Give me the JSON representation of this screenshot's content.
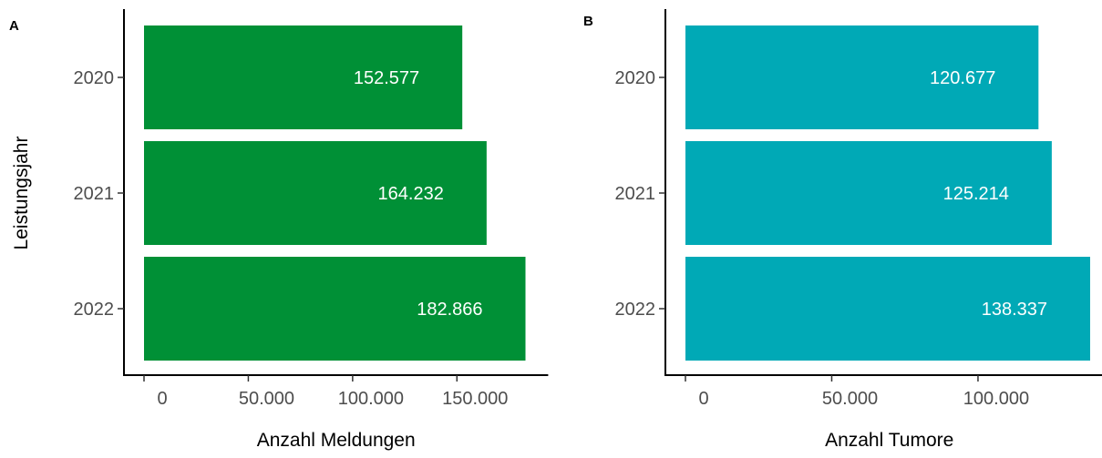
{
  "chart_data": [
    {
      "type": "bar",
      "orientation": "horizontal",
      "panel_tag": "A",
      "categories": [
        "2020",
        "2021",
        "2022"
      ],
      "values": [
        152577,
        164232,
        182866
      ],
      "value_labels": [
        "152.577",
        "164.232",
        "182.866"
      ],
      "xlabel": "Anzahl Meldungen",
      "ylabel": "Leistungsjahr",
      "xticks": [
        0,
        50000,
        100000,
        150000
      ],
      "xtick_labels": [
        "0",
        "50.000",
        "100.000",
        "150.000"
      ],
      "xlim": [
        0,
        192000
      ],
      "bar_color": "#009036",
      "grid": false
    },
    {
      "type": "bar",
      "orientation": "horizontal",
      "panel_tag": "B",
      "categories": [
        "2020",
        "2021",
        "2022"
      ],
      "values": [
        120677,
        125214,
        138337
      ],
      "value_labels": [
        "120.677",
        "125.214",
        "138.337"
      ],
      "xlabel": "Anzahl Tumore",
      "ylabel": "",
      "xticks": [
        0,
        50000,
        100000
      ],
      "xtick_labels": [
        "0",
        "50.000",
        "100.000"
      ],
      "xlim": [
        0,
        145000
      ],
      "bar_color": "#00a9b6",
      "grid": false
    }
  ]
}
